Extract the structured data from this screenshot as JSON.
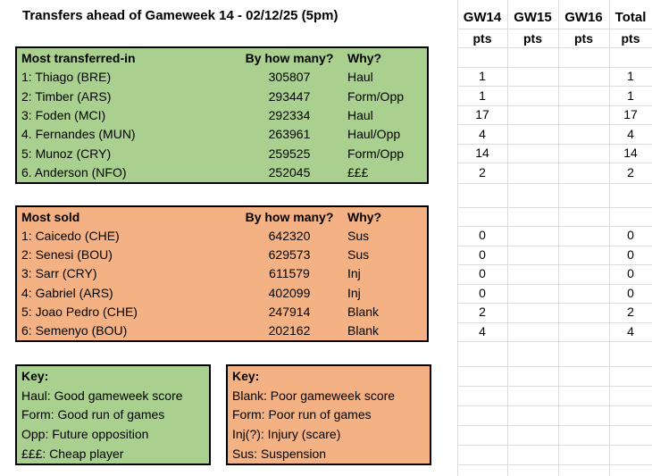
{
  "title": "Transfers ahead of Gameweek 14 - 02/12/25 (5pm)",
  "points_header": {
    "columns": [
      "GW14",
      "GW15",
      "GW16",
      "Total"
    ],
    "subheader": "pts"
  },
  "transfers_in": {
    "title": "Most transferred-in",
    "col_count": "By how many?",
    "col_why": "Why?",
    "rows": [
      {
        "player": "1: Thiago (BRE)",
        "count": "305807",
        "why": "Haul",
        "gw14": "1",
        "gw15": "",
        "gw16": "",
        "total": "1"
      },
      {
        "player": "2: Timber (ARS)",
        "count": "293447",
        "why": "Form/Opp",
        "gw14": "1",
        "gw15": "",
        "gw16": "",
        "total": "1"
      },
      {
        "player": "3: Foden (MCI)",
        "count": "292334",
        "why": "Haul",
        "gw14": "17",
        "gw15": "",
        "gw16": "",
        "total": "17"
      },
      {
        "player": "4. Fernandes (MUN)",
        "count": "263961",
        "why": "Haul/Opp",
        "gw14": "4",
        "gw15": "",
        "gw16": "",
        "total": "4"
      },
      {
        "player": "5: Munoz (CRY)",
        "count": "259525",
        "why": "Form/Opp",
        "gw14": "14",
        "gw15": "",
        "gw16": "",
        "total": "14"
      },
      {
        "player": "6. Anderson (NFO)",
        "count": "252045",
        "why": "£££",
        "gw14": "2",
        "gw15": "",
        "gw16": "",
        "total": "2"
      }
    ]
  },
  "transfers_out": {
    "title": "Most sold",
    "col_count": "By how many?",
    "col_why": "Why?",
    "rows": [
      {
        "player": "1: Caicedo (CHE)",
        "count": "642320",
        "why": "Sus",
        "gw14": "0",
        "gw15": "",
        "gw16": "",
        "total": "0"
      },
      {
        "player": "2: Senesi (BOU)",
        "count": "629573",
        "why": "Sus",
        "gw14": "0",
        "gw15": "",
        "gw16": "",
        "total": "0"
      },
      {
        "player": "3: Sarr (CRY)",
        "count": "611579",
        "why": "Inj",
        "gw14": "0",
        "gw15": "",
        "gw16": "",
        "total": "0"
      },
      {
        "player": "4: Gabriel (ARS)",
        "count": "402099",
        "why": "Inj",
        "gw14": "0",
        "gw15": "",
        "gw16": "",
        "total": "0"
      },
      {
        "player": "5: Joao Pedro (CHE)",
        "count": "247914",
        "why": "Blank",
        "gw14": "2",
        "gw15": "",
        "gw16": "",
        "total": "2"
      },
      {
        "player": "6: Semenyo (BOU)",
        "count": "202162",
        "why": "Blank",
        "gw14": "4",
        "gw15": "",
        "gw16": "",
        "total": "4"
      }
    ]
  },
  "key_good": {
    "title": "Key:",
    "lines": [
      "Haul: Good gameweek score",
      "Form: Good run of games",
      "Opp: Future opposition",
      "£££: Cheap player"
    ]
  },
  "key_bad": {
    "title": "Key:",
    "lines": [
      "Blank: Poor gameweek score",
      "Form: Poor run of games",
      "Inj(?): Injury (scare)",
      "Sus: Suspension"
    ]
  },
  "colors": {
    "green": "#A9D08E",
    "orange": "#F4B183",
    "gridline": "#DCDCDC",
    "border": "#000000"
  }
}
